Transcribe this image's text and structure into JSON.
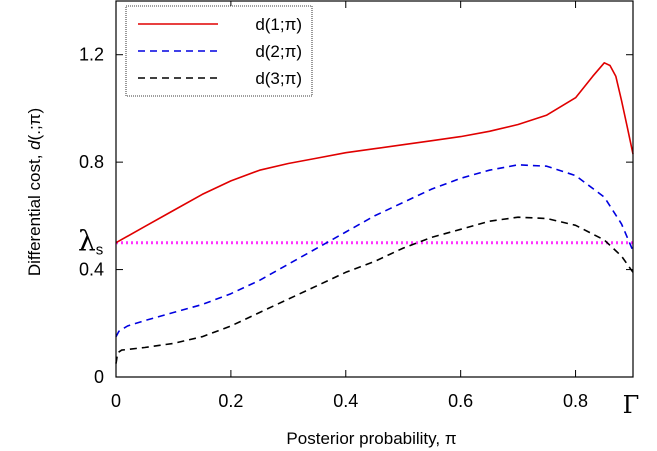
{
  "chart_data": {
    "type": "line",
    "xlabel": "Posterior probability, π",
    "ylabel_text": "Differential cost, ",
    "ylabel_italic": "d",
    "ylabel_suffix": "(.;π)",
    "xlim": [
      0,
      0.9
    ],
    "ylim": [
      0,
      1.4
    ],
    "x_ticks": [
      0,
      0.2,
      0.4,
      0.6,
      0.8
    ],
    "x_tick_labels": [
      "0",
      "0.2",
      "0.4",
      "0.6",
      "0.8"
    ],
    "x_end_label": "Γ",
    "y_ticks": [
      0,
      0.4,
      0.8,
      1.2
    ],
    "y_tick_labels": [
      "0",
      "0.4",
      "0.8",
      "1.2"
    ],
    "lambda_label": "λ",
    "lambda_sub": "s",
    "lambda_value": 0.5,
    "legend_position": "top-left",
    "grid": false,
    "series": [
      {
        "name": "d(1;π)",
        "color": "#e00000",
        "dash": "solid",
        "points": [
          [
            0,
            0.5
          ],
          [
            0.05,
            0.56
          ],
          [
            0.1,
            0.62
          ],
          [
            0.15,
            0.68
          ],
          [
            0.2,
            0.73
          ],
          [
            0.25,
            0.77
          ],
          [
            0.3,
            0.795
          ],
          [
            0.35,
            0.815
          ],
          [
            0.4,
            0.835
          ],
          [
            0.45,
            0.85
          ],
          [
            0.5,
            0.865
          ],
          [
            0.55,
            0.88
          ],
          [
            0.6,
            0.895
          ],
          [
            0.65,
            0.915
          ],
          [
            0.7,
            0.94
          ],
          [
            0.75,
            0.975
          ],
          [
            0.8,
            1.04
          ],
          [
            0.83,
            1.12
          ],
          [
            0.85,
            1.17
          ],
          [
            0.86,
            1.16
          ],
          [
            0.87,
            1.12
          ],
          [
            0.88,
            1.03
          ],
          [
            0.89,
            0.93
          ],
          [
            0.9,
            0.83
          ]
        ]
      },
      {
        "name": "d(2;π)",
        "color": "#0000e0",
        "dash": "dashed",
        "points": [
          [
            0,
            0.15
          ],
          [
            0.005,
            0.17
          ],
          [
            0.02,
            0.19
          ],
          [
            0.05,
            0.21
          ],
          [
            0.1,
            0.24
          ],
          [
            0.15,
            0.27
          ],
          [
            0.2,
            0.31
          ],
          [
            0.25,
            0.36
          ],
          [
            0.3,
            0.42
          ],
          [
            0.35,
            0.48
          ],
          [
            0.4,
            0.54
          ],
          [
            0.45,
            0.6
          ],
          [
            0.5,
            0.65
          ],
          [
            0.55,
            0.7
          ],
          [
            0.6,
            0.74
          ],
          [
            0.65,
            0.77
          ],
          [
            0.7,
            0.79
          ],
          [
            0.75,
            0.785
          ],
          [
            0.8,
            0.75
          ],
          [
            0.85,
            0.67
          ],
          [
            0.88,
            0.57
          ],
          [
            0.9,
            0.47
          ]
        ]
      },
      {
        "name": "d(3;π)",
        "color": "#000000",
        "dash": "dashed",
        "points": [
          [
            0,
            0.05
          ],
          [
            0.003,
            0.09
          ],
          [
            0.01,
            0.1
          ],
          [
            0.05,
            0.11
          ],
          [
            0.1,
            0.125
          ],
          [
            0.15,
            0.15
          ],
          [
            0.2,
            0.19
          ],
          [
            0.25,
            0.24
          ],
          [
            0.3,
            0.29
          ],
          [
            0.35,
            0.34
          ],
          [
            0.4,
            0.39
          ],
          [
            0.45,
            0.43
          ],
          [
            0.5,
            0.48
          ],
          [
            0.55,
            0.52
          ],
          [
            0.6,
            0.55
          ],
          [
            0.65,
            0.58
          ],
          [
            0.7,
            0.595
          ],
          [
            0.75,
            0.59
          ],
          [
            0.8,
            0.565
          ],
          [
            0.85,
            0.51
          ],
          [
            0.88,
            0.45
          ],
          [
            0.9,
            0.39
          ]
        ]
      }
    ],
    "reference_line": {
      "y": 0.5,
      "color": "#ff33ff",
      "dash": "dotted"
    }
  }
}
